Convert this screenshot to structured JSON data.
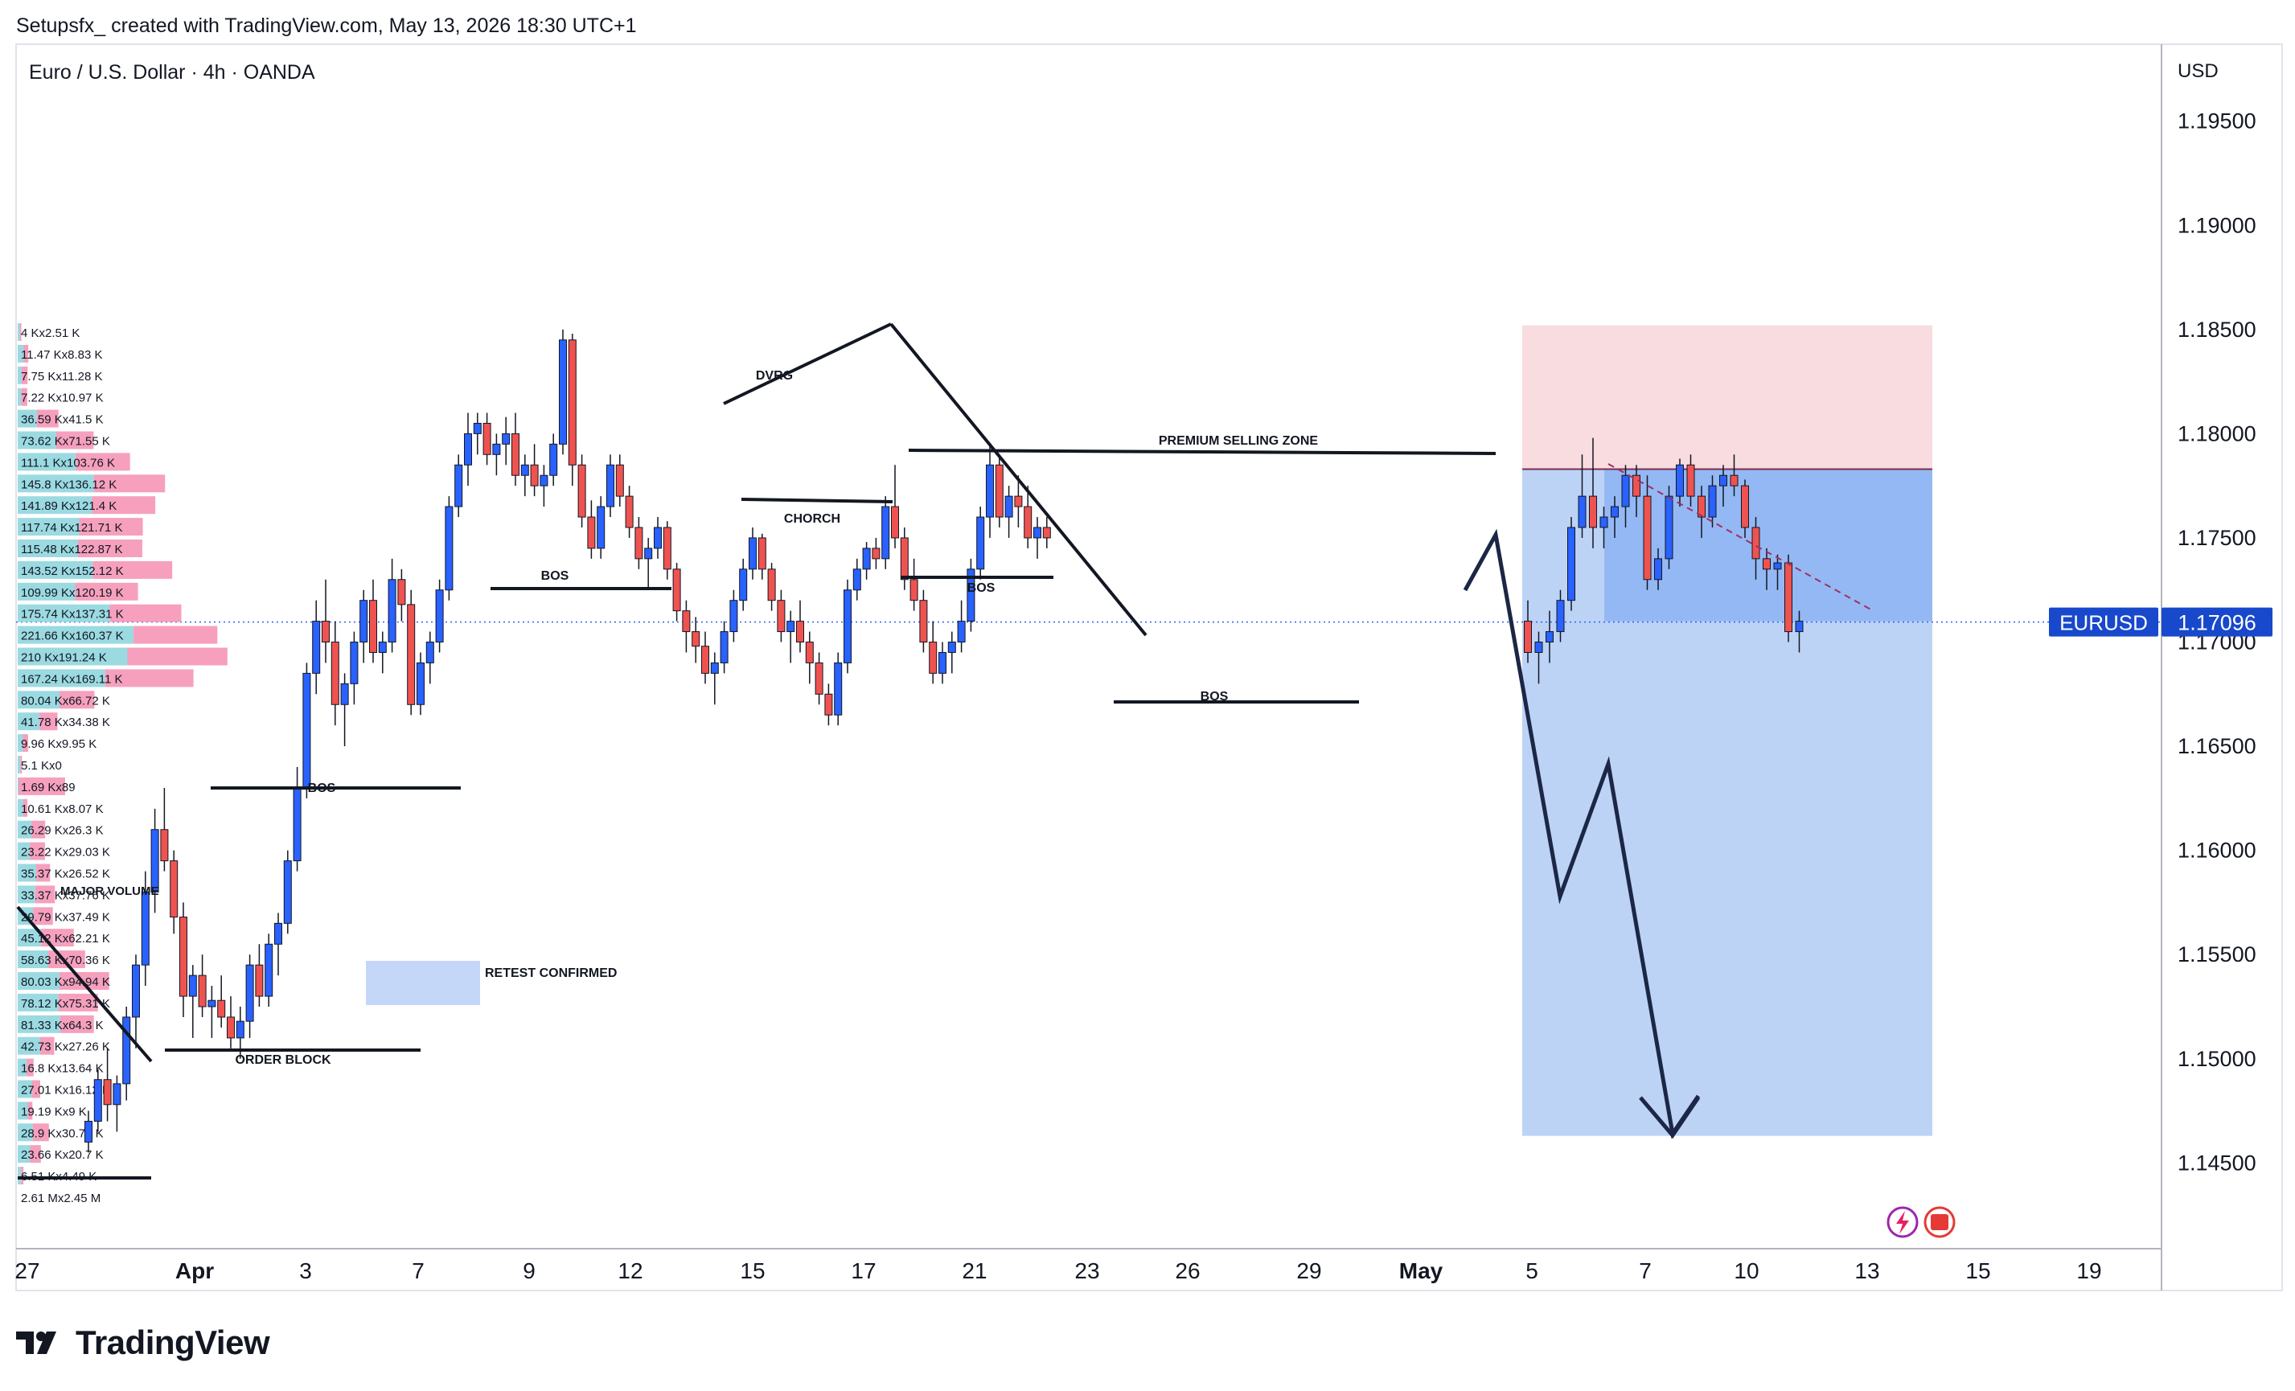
{
  "header": {
    "created_by": "Setupsfx_ created with TradingView.com, May 13, 2026 18:30 UTC+1"
  },
  "symbol": {
    "title": "Euro / U.S. Dollar · 4h · OANDA"
  },
  "price_axis": {
    "currency": "USD",
    "ticks": [
      "1.19500",
      "1.19000",
      "1.18500",
      "1.18000",
      "1.17500",
      "1.17000",
      "1.16500",
      "1.16000",
      "1.15500",
      "1.15000",
      "1.14500"
    ],
    "current_ticker": "EURUSD",
    "current_price": "1.17096"
  },
  "colors": {
    "bull": "#2962ff",
    "bear": "#ef5350",
    "stop_zone": "#f7d6da",
    "target_zone": "#b8d1f5",
    "entry_zone": "#8db3f2",
    "current_price_tag": "#1848cc"
  },
  "chart_data": {
    "type": "candlestick",
    "title": "Euro / U.S. Dollar · 4h · OANDA",
    "ylim": [
      1.141,
      1.1985
    ],
    "x_ticks": [
      "27",
      "Apr",
      "3",
      "7",
      "9",
      "12",
      "15",
      "17",
      "21",
      "23",
      "26",
      "29",
      "May",
      "5",
      "7",
      "10",
      "13",
      "15",
      "19"
    ],
    "candles": [
      [
        1.146,
        1.1475,
        1.1455,
        1.147
      ],
      [
        1.147,
        1.1495,
        1.1465,
        1.149
      ],
      [
        1.149,
        1.1505,
        1.147,
        1.1478
      ],
      [
        1.1478,
        1.1492,
        1.1465,
        1.1488
      ],
      [
        1.1488,
        1.1525,
        1.148,
        1.152
      ],
      [
        1.152,
        1.155,
        1.1505,
        1.1545
      ],
      [
        1.1545,
        1.159,
        1.1535,
        1.158
      ],
      [
        1.158,
        1.162,
        1.157,
        1.161
      ],
      [
        1.161,
        1.163,
        1.159,
        1.1595
      ],
      [
        1.1595,
        1.16,
        1.156,
        1.1568
      ],
      [
        1.1568,
        1.1575,
        1.152,
        1.153
      ],
      [
        1.153,
        1.1545,
        1.151,
        1.154
      ],
      [
        1.154,
        1.155,
        1.152,
        1.1525
      ],
      [
        1.1525,
        1.1535,
        1.151,
        1.1528
      ],
      [
        1.1528,
        1.154,
        1.1515,
        1.152
      ],
      [
        1.152,
        1.153,
        1.1505,
        1.151
      ],
      [
        1.151,
        1.1525,
        1.15,
        1.1518
      ],
      [
        1.1518,
        1.155,
        1.151,
        1.1545
      ],
      [
        1.1545,
        1.1555,
        1.1525,
        1.153
      ],
      [
        1.153,
        1.156,
        1.1525,
        1.1555
      ],
      [
        1.1555,
        1.157,
        1.154,
        1.1565
      ],
      [
        1.1565,
        1.16,
        1.156,
        1.1595
      ],
      [
        1.1595,
        1.164,
        1.159,
        1.163
      ],
      [
        1.163,
        1.169,
        1.1625,
        1.1685
      ],
      [
        1.1685,
        1.172,
        1.1675,
        1.171
      ],
      [
        1.171,
        1.173,
        1.169,
        1.17
      ],
      [
        1.17,
        1.171,
        1.166,
        1.167
      ],
      [
        1.167,
        1.1685,
        1.165,
        1.168
      ],
      [
        1.168,
        1.1705,
        1.167,
        1.17
      ],
      [
        1.17,
        1.1725,
        1.169,
        1.172
      ],
      [
        1.172,
        1.173,
        1.169,
        1.1695
      ],
      [
        1.1695,
        1.1705,
        1.1685,
        1.17
      ],
      [
        1.17,
        1.174,
        1.1695,
        1.173
      ],
      [
        1.173,
        1.1735,
        1.171,
        1.1718
      ],
      [
        1.1718,
        1.1725,
        1.1665,
        1.167
      ],
      [
        1.167,
        1.1695,
        1.1665,
        1.169
      ],
      [
        1.169,
        1.1705,
        1.168,
        1.17
      ],
      [
        1.17,
        1.173,
        1.1695,
        1.1725
      ],
      [
        1.1725,
        1.177,
        1.172,
        1.1765
      ],
      [
        1.1765,
        1.179,
        1.176,
        1.1785
      ],
      [
        1.1785,
        1.181,
        1.1775,
        1.18
      ],
      [
        1.18,
        1.181,
        1.179,
        1.1805
      ],
      [
        1.1805,
        1.181,
        1.1785,
        1.179
      ],
      [
        1.179,
        1.18,
        1.178,
        1.1795
      ],
      [
        1.1795,
        1.1808,
        1.1785,
        1.18
      ],
      [
        1.18,
        1.181,
        1.1775,
        1.178
      ],
      [
        1.178,
        1.179,
        1.177,
        1.1785
      ],
      [
        1.1785,
        1.1795,
        1.177,
        1.1775
      ],
      [
        1.1775,
        1.1785,
        1.1765,
        1.178
      ],
      [
        1.178,
        1.18,
        1.1775,
        1.1795
      ],
      [
        1.1795,
        1.185,
        1.179,
        1.1845
      ],
      [
        1.1845,
        1.1848,
        1.1775,
        1.1785
      ],
      [
        1.1785,
        1.179,
        1.1755,
        1.176
      ],
      [
        1.176,
        1.1768,
        1.174,
        1.1745
      ],
      [
        1.1745,
        1.177,
        1.174,
        1.1765
      ],
      [
        1.1765,
        1.179,
        1.176,
        1.1785
      ],
      [
        1.1785,
        1.179,
        1.1765,
        1.177
      ],
      [
        1.177,
        1.1775,
        1.175,
        1.1755
      ],
      [
        1.1755,
        1.176,
        1.1735,
        1.174
      ],
      [
        1.174,
        1.175,
        1.1725,
        1.1745
      ],
      [
        1.1745,
        1.176,
        1.174,
        1.1755
      ],
      [
        1.1755,
        1.1758,
        1.173,
        1.1735
      ],
      [
        1.1735,
        1.1738,
        1.171,
        1.1715
      ],
      [
        1.1715,
        1.172,
        1.1695,
        1.1705
      ],
      [
        1.1705,
        1.1712,
        1.169,
        1.1698
      ],
      [
        1.1698,
        1.1705,
        1.168,
        1.1685
      ],
      [
        1.1685,
        1.1695,
        1.167,
        1.169
      ],
      [
        1.169,
        1.171,
        1.1685,
        1.1705
      ],
      [
        1.1705,
        1.1725,
        1.17,
        1.172
      ],
      [
        1.172,
        1.174,
        1.1715,
        1.1735
      ],
      [
        1.1735,
        1.1755,
        1.173,
        1.175
      ],
      [
        1.175,
        1.1752,
        1.173,
        1.1735
      ],
      [
        1.1735,
        1.1738,
        1.1715,
        1.172
      ],
      [
        1.172,
        1.1725,
        1.17,
        1.1705
      ],
      [
        1.1705,
        1.1715,
        1.169,
        1.171
      ],
      [
        1.171,
        1.172,
        1.1695,
        1.17
      ],
      [
        1.17,
        1.1705,
        1.168,
        1.169
      ],
      [
        1.169,
        1.1695,
        1.167,
        1.1675
      ],
      [
        1.1675,
        1.168,
        1.166,
        1.1665
      ],
      [
        1.1665,
        1.1695,
        1.166,
        1.169
      ],
      [
        1.169,
        1.173,
        1.1685,
        1.1725
      ],
      [
        1.1725,
        1.174,
        1.172,
        1.1735
      ],
      [
        1.1735,
        1.1748,
        1.173,
        1.1745
      ],
      [
        1.1745,
        1.175,
        1.1735,
        1.174
      ],
      [
        1.174,
        1.177,
        1.1735,
        1.1765
      ],
      [
        1.1765,
        1.1785,
        1.1745,
        1.175
      ],
      [
        1.175,
        1.1755,
        1.1725,
        1.173
      ],
      [
        1.173,
        1.174,
        1.1715,
        1.172
      ],
      [
        1.172,
        1.1725,
        1.1695,
        1.17
      ],
      [
        1.17,
        1.171,
        1.168,
        1.1685
      ],
      [
        1.1685,
        1.17,
        1.168,
        1.1695
      ],
      [
        1.1695,
        1.1705,
        1.1685,
        1.17
      ],
      [
        1.17,
        1.172,
        1.1695,
        1.171
      ],
      [
        1.171,
        1.174,
        1.1705,
        1.1735
      ],
      [
        1.1735,
        1.1765,
        1.173,
        1.176
      ],
      [
        1.176,
        1.1795,
        1.175,
        1.1785
      ],
      [
        1.1785,
        1.179,
        1.1755,
        1.176
      ],
      [
        1.176,
        1.1775,
        1.175,
        1.177
      ],
      [
        1.177,
        1.178,
        1.1755,
        1.1765
      ],
      [
        1.1765,
        1.1775,
        1.1745,
        1.175
      ],
      [
        1.175,
        1.176,
        1.174,
        1.1755
      ],
      [
        1.1755,
        1.176,
        1.1745,
        1.175
      ]
    ],
    "candles_right": [
      [
        1.171,
        1.172,
        1.169,
        1.1695
      ],
      [
        1.1695,
        1.1705,
        1.168,
        1.17
      ],
      [
        1.17,
        1.1715,
        1.169,
        1.1705
      ],
      [
        1.1705,
        1.1725,
        1.17,
        1.172
      ],
      [
        1.172,
        1.176,
        1.1715,
        1.1755
      ],
      [
        1.1755,
        1.179,
        1.175,
        1.177
      ],
      [
        1.177,
        1.1798,
        1.1745,
        1.1755
      ],
      [
        1.1755,
        1.1765,
        1.1745,
        1.176
      ],
      [
        1.176,
        1.177,
        1.175,
        1.1765
      ],
      [
        1.1765,
        1.1785,
        1.1755,
        1.178
      ],
      [
        1.178,
        1.1785,
        1.176,
        1.177
      ],
      [
        1.177,
        1.178,
        1.1725,
        1.173
      ],
      [
        1.173,
        1.1745,
        1.1725,
        1.174
      ],
      [
        1.174,
        1.1775,
        1.1735,
        1.177
      ],
      [
        1.177,
        1.1788,
        1.1765,
        1.1785
      ],
      [
        1.1785,
        1.179,
        1.1765,
        1.177
      ],
      [
        1.177,
        1.1775,
        1.175,
        1.176
      ],
      [
        1.176,
        1.178,
        1.1755,
        1.1775
      ],
      [
        1.1775,
        1.1785,
        1.1765,
        1.178
      ],
      [
        1.178,
        1.179,
        1.177,
        1.1775
      ],
      [
        1.1775,
        1.1778,
        1.175,
        1.1755
      ],
      [
        1.1755,
        1.176,
        1.173,
        1.174
      ],
      [
        1.174,
        1.1745,
        1.1725,
        1.1735
      ],
      [
        1.1735,
        1.1742,
        1.1725,
        1.1738
      ],
      [
        1.1738,
        1.1742,
        1.17,
        1.1705
      ],
      [
        1.1705,
        1.1715,
        1.1695,
        1.171
      ]
    ],
    "annotations": {
      "labels": [
        "BOS",
        "BOS",
        "BOS",
        "BOS",
        "DVRG",
        "CHORCH",
        "PREMIUM SELLING ZONE",
        "RETEST CONFIRMED",
        "ORDER BLOCK",
        "MAJOR VOLUME"
      ],
      "short_position": {
        "stop": 1.1852,
        "entry": 1.171,
        "entry_top": 1.1783,
        "target": 1.1463
      }
    },
    "volume_profile": [
      "4 Kx2.51 K",
      "11.47 Kx8.83 K",
      "7.75 Kx11.28 K",
      "7.22 Kx10.97 K",
      "36.59 Kx41.5 K",
      "73.62 Kx71.55 K",
      "111.1 Kx103.76 K",
      "145.8 Kx136.12 K",
      "141.89 Kx121.4 K",
      "117.74 Kx121.71 K",
      "115.48 Kx122.87 K",
      "143.52 Kx152.12 K",
      "109.99 Kx120.19 K",
      "175.74 Kx137.31 K",
      "221.66 Kx160.37 K",
      "210 Kx191.24 K",
      "167.24 Kx169.11 K",
      "80.04 Kx66.72 K",
      "41.78 Kx34.38 K",
      "9.96 Kx9.95 K",
      "5.1 Kx0",
      "1.69 Kx89",
      "10.61 Kx8.07 K",
      "26.29 Kx26.3 K",
      "23.22 Kx29.03 K",
      "35.37 Kx26.52 K",
      "33.37 Kx37.76 K",
      "29.79 Kx37.49 K",
      "45.12 Kx62.21 K",
      "58.63 Kx70.36 K",
      "80.03 Kx94.94 K",
      "78.12 Kx75.31 K",
      "81.33 Kx64.3 K",
      "42.73 Kx27.26 K",
      "16.8 Kx13.64 K",
      "27.01 Kx16.12 K",
      "19.19 Kx9 K",
      "28.9 Kx30.79 K",
      "23.66 Kx20.7 K",
      "6.51 Kx4.49 K",
      "2.61 Mx2.45 M"
    ]
  },
  "branding": {
    "name": "TradingView"
  }
}
